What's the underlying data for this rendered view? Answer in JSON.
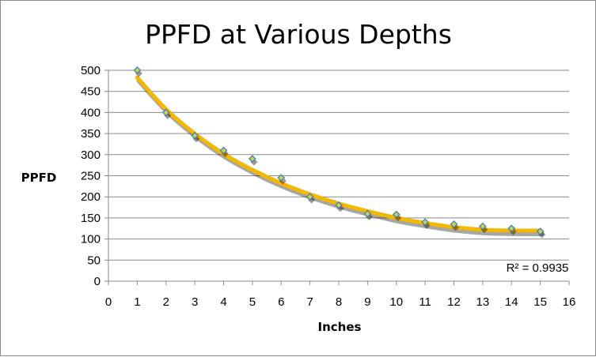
{
  "chart_data": {
    "type": "scatter",
    "title": "PPFD at Various Depths",
    "xlabel": "Inches",
    "ylabel": "PPFD",
    "xlim": [
      0,
      16
    ],
    "ylim": [
      0,
      500
    ],
    "x_ticks": [
      "0",
      "1",
      "2",
      "3",
      "4",
      "5",
      "6",
      "7",
      "8",
      "9",
      "10",
      "11",
      "12",
      "13",
      "14",
      "15",
      "16"
    ],
    "y_ticks": [
      "0",
      "50",
      "100",
      "150",
      "200",
      "250",
      "300",
      "350",
      "400",
      "450",
      "500"
    ],
    "grid": "horizontal",
    "legend": "none",
    "series": [
      {
        "x": [
          1,
          2,
          3,
          4,
          5,
          6,
          7,
          8,
          9,
          10,
          11,
          12,
          13,
          14,
          15
        ],
        "y": [
          500,
          400,
          345,
          310,
          290,
          245,
          200,
          180,
          160,
          158,
          140,
          135,
          130,
          125,
          118
        ],
        "marker_color": "#4a7ebb",
        "marker_fill": "#c8d44a"
      }
    ],
    "trendline": {
      "type": "polynomial",
      "color": "#f5b800",
      "r_squared_label": "R² = 0.9935",
      "x": [
        1,
        2,
        3,
        4,
        5,
        6,
        7,
        8,
        9,
        10,
        11,
        12,
        13,
        14,
        15
      ],
      "y": [
        483,
        408,
        350,
        302,
        264,
        232,
        206,
        184,
        166,
        150,
        138,
        128,
        122,
        120,
        120
      ]
    }
  }
}
